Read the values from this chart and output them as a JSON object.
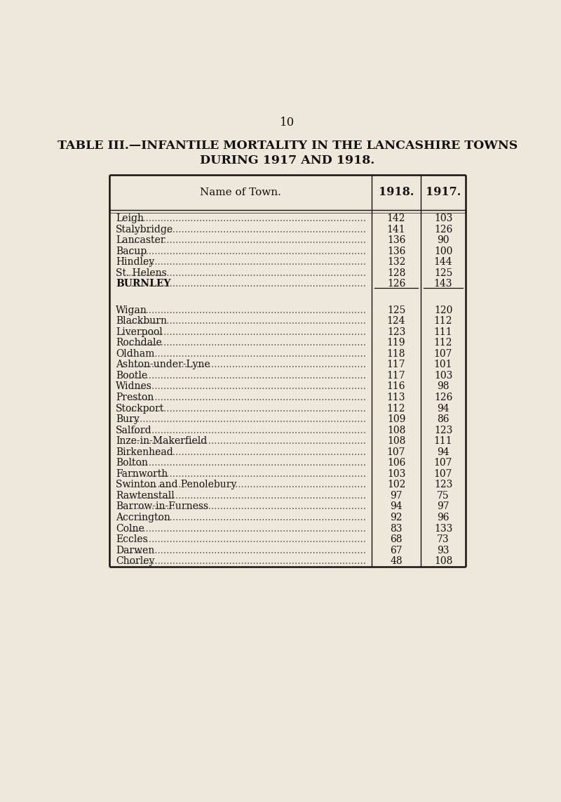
{
  "page_number": "10",
  "title_line1": "TABLE III.—INFANTILE MORTALITY IN THE LANCASHIRE TOWNS",
  "title_line2": "DURING 1917 AND 1918.",
  "col_header_name": "Name of Town.",
  "col_header_1918": "1918.",
  "col_header_1917": "1917.",
  "rows": [
    {
      "name": "Leigh",
      "val1918": "142",
      "val1917": "103",
      "bold": false,
      "gap_before": false
    },
    {
      "name": "Stalybridge",
      "val1918": "141",
      "val1917": "126",
      "bold": false,
      "gap_before": false
    },
    {
      "name": "Lancaster",
      "val1918": "136",
      "val1917": "90",
      "bold": false,
      "gap_before": false
    },
    {
      "name": "Bacup",
      "val1918": "136",
      "val1917": "100",
      "bold": false,
      "gap_before": false
    },
    {
      "name": "Hindley",
      "val1918": "132",
      "val1917": "144",
      "bold": false,
      "gap_before": false
    },
    {
      "name": "St. Helens",
      "val1918": "128",
      "val1917": "125",
      "bold": false,
      "gap_before": false
    },
    {
      "name": "BURNLEY",
      "val1918": "126",
      "val1917": "143",
      "bold": true,
      "gap_before": false,
      "underline": true
    },
    {
      "name": "Wigan",
      "val1918": "125",
      "val1917": "120",
      "bold": false,
      "gap_before": true
    },
    {
      "name": "Blackburn",
      "val1918": "124",
      "val1917": "112",
      "bold": false,
      "gap_before": false
    },
    {
      "name": "Liverpool",
      "val1918": "123",
      "val1917": "111",
      "bold": false,
      "gap_before": false
    },
    {
      "name": "Rochdale",
      "val1918": "119",
      "val1917": "112",
      "bold": false,
      "gap_before": false
    },
    {
      "name": "Oldham",
      "val1918": "118",
      "val1917": "107",
      "bold": false,
      "gap_before": false
    },
    {
      "name": "Ashton-under-Lyne",
      "val1918": "117",
      "val1917": "101",
      "bold": false,
      "gap_before": false
    },
    {
      "name": "Bootle",
      "val1918": "117",
      "val1917": "103",
      "bold": false,
      "gap_before": false
    },
    {
      "name": "Widnes",
      "val1918": "116",
      "val1917": "98",
      "bold": false,
      "gap_before": false
    },
    {
      "name": "Preston",
      "val1918": "113",
      "val1917": "126",
      "bold": false,
      "gap_before": false
    },
    {
      "name": "Stockport",
      "val1918": "112",
      "val1917": "94",
      "bold": false,
      "gap_before": false
    },
    {
      "name": "Bury",
      "val1918": "109",
      "val1917": "86",
      "bold": false,
      "gap_before": false
    },
    {
      "name": "Salford",
      "val1918": "108",
      "val1917": "123",
      "bold": false,
      "gap_before": false
    },
    {
      "name": "Inze-in-Makerfield",
      "val1918": "108",
      "val1917": "111",
      "bold": false,
      "gap_before": false
    },
    {
      "name": "Birkenhead",
      "val1918": "107",
      "val1917": "94",
      "bold": false,
      "gap_before": false
    },
    {
      "name": "Bolton",
      "val1918": "106",
      "val1917": "107",
      "bold": false,
      "gap_before": false
    },
    {
      "name": "Farnworth",
      "val1918": "103",
      "val1917": "107",
      "bold": false,
      "gap_before": false
    },
    {
      "name": "Swinton and Penolebury",
      "val1918": "102",
      "val1917": "123",
      "bold": false,
      "gap_before": false
    },
    {
      "name": "Rawtenstall",
      "val1918": "97",
      "val1917": "75",
      "bold": false,
      "gap_before": false
    },
    {
      "name": "Barrow-in-Furness",
      "val1918": "94",
      "val1917": "97",
      "bold": false,
      "gap_before": false
    },
    {
      "name": "Accrington",
      "val1918": "92",
      "val1917": "96",
      "bold": false,
      "gap_before": false
    },
    {
      "name": "Colne",
      "val1918": "83",
      "val1917": "133",
      "bold": false,
      "gap_before": false
    },
    {
      "name": "Eccles",
      "val1918": "68",
      "val1917": "73",
      "bold": false,
      "gap_before": false
    },
    {
      "name": "Darwen",
      "val1918": "67",
      "val1917": "93",
      "bold": false,
      "gap_before": false
    },
    {
      "name": "Chorley",
      "val1918": "48",
      "val1917": "108",
      "bold": false,
      "gap_before": false
    }
  ],
  "bg_color": "#ede8da",
  "border_color": "#111111",
  "text_color": "#111111",
  "dot_color": "#555555"
}
